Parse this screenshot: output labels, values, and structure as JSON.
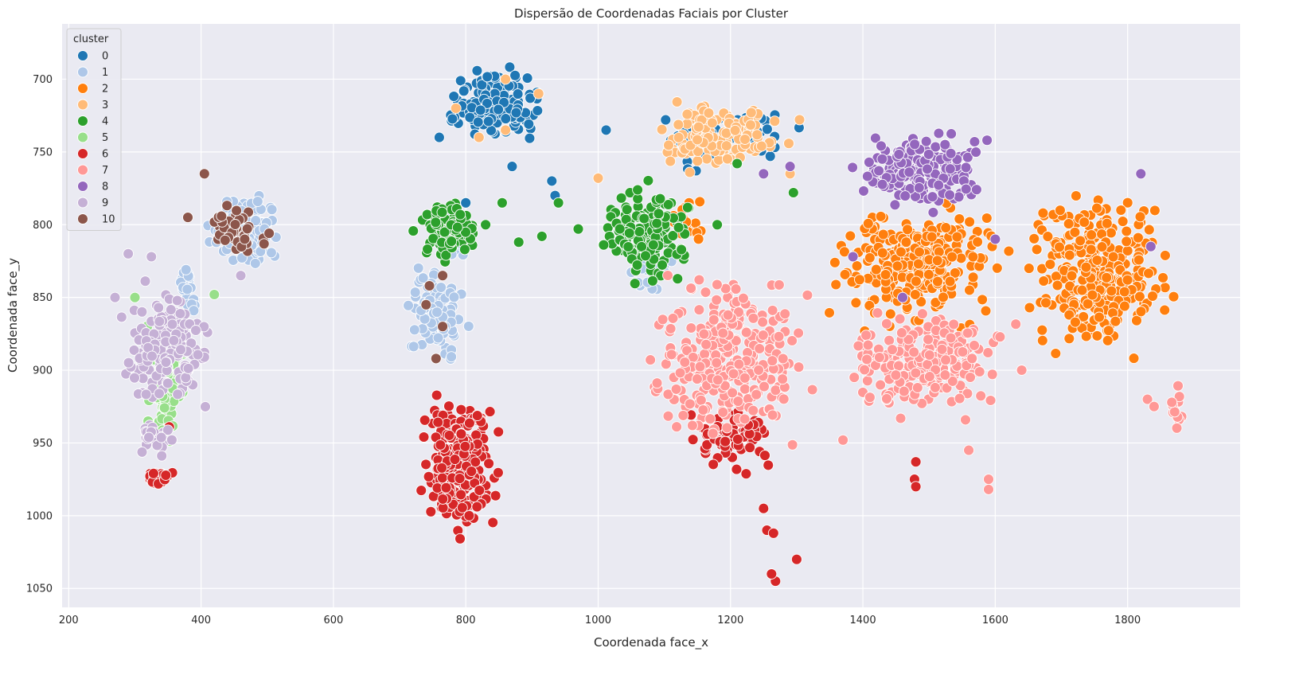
{
  "chart_data": {
    "type": "scatter",
    "title": "Dispersão de Coordenadas Faciais por Cluster",
    "xlabel": "Coordenada face_x",
    "ylabel": "Coordenada face_y",
    "xlim": [
      190,
      1970
    ],
    "ylim": [
      1063,
      662
    ],
    "y_inverted": true,
    "grid": true,
    "background": "#EAEAF2",
    "xticks": [
      200,
      400,
      600,
      800,
      1000,
      1200,
      1400,
      1600,
      1800
    ],
    "yticks": [
      700,
      750,
      800,
      850,
      900,
      950,
      1000,
      1050
    ],
    "legend": {
      "title": "cluster",
      "placement": "upper-left"
    },
    "series": [
      {
        "name": "0",
        "color": "#1f77b4",
        "regions": [
          {
            "x": [
              755,
              940
            ],
            "y": [
              690,
              745
            ],
            "n": 160
          },
          {
            "x": [
              1070,
              1320
            ],
            "y": [
              712,
              765
            ],
            "n": 60
          },
          {
            "points": [
              [
                1012,
                735
              ],
              [
                870,
                760
              ],
              [
                930,
                770
              ],
              [
                935,
                780
              ],
              [
                800,
                785
              ],
              [
                760,
                740
              ]
            ]
          }
        ]
      },
      {
        "name": "1",
        "color": "#aec7e8",
        "regions": [
          {
            "x": [
              400,
              530
            ],
            "y": [
              775,
              835
            ],
            "n": 110
          },
          {
            "x": [
              700,
              810
            ],
            "y": [
              820,
              905
            ],
            "n": 100
          },
          {
            "x": [
              740,
              820
            ],
            "y": [
              785,
              830
            ],
            "n": 30
          },
          {
            "x": [
              1020,
              1130
            ],
            "y": [
              810,
              860
            ],
            "n": 20
          },
          {
            "x": [
              360,
              400
            ],
            "y": [
              820,
              870
            ],
            "n": 20
          }
        ]
      },
      {
        "name": "2",
        "color": "#ff7f0e",
        "regions": [
          {
            "x": [
              1330,
              1640
            ],
            "y": [
              775,
              880
            ],
            "n": 280
          },
          {
            "x": [
              1620,
              1890
            ],
            "y": [
              765,
              900
            ],
            "n": 290
          },
          {
            "x": [
              1100,
              1170
            ],
            "y": [
              778,
              815
            ],
            "n": 18
          }
        ]
      },
      {
        "name": "3",
        "color": "#ffbb78",
        "regions": [
          {
            "x": [
              1050,
              1320
            ],
            "y": [
              710,
              770
            ],
            "n": 130
          },
          {
            "points": [
              [
                785,
                720
              ],
              [
                820,
                740
              ],
              [
                860,
                735
              ],
              [
                910,
                710
              ],
              [
                860,
                700
              ],
              [
                1000,
                768
              ],
              [
                1290,
                765
              ]
            ]
          }
        ]
      },
      {
        "name": "4",
        "color": "#2ca02c",
        "regions": [
          {
            "x": [
              715,
              830
            ],
            "y": [
              778,
              830
            ],
            "n": 100
          },
          {
            "x": [
              990,
              1160
            ],
            "y": [
              765,
              850
            ],
            "n": 140
          },
          {
            "points": [
              [
                830,
                800
              ],
              [
                855,
                785
              ],
              [
                880,
                812
              ],
              [
                915,
                808
              ],
              [
                970,
                803
              ],
              [
                940,
                785
              ],
              [
                1210,
                758
              ],
              [
                1295,
                778
              ],
              [
                1210,
                862
              ],
              [
                1180,
                800
              ]
            ]
          }
        ]
      },
      {
        "name": "5",
        "color": "#98df8a",
        "regions": [
          {
            "x": [
              310,
              390
            ],
            "y": [
              855,
              960
            ],
            "n": 90
          },
          {
            "points": [
              [
                320,
                935
              ],
              [
                330,
                972
              ],
              [
                420,
                848
              ],
              [
                300,
                850
              ]
            ]
          }
        ]
      },
      {
        "name": "6",
        "color": "#d62728",
        "regions": [
          {
            "x": [
              720,
              860
            ],
            "y": [
              905,
              1028
            ],
            "n": 230
          },
          {
            "x": [
              1120,
              1270
            ],
            "y": [
              918,
              975
            ],
            "n": 80
          },
          {
            "x": [
              310,
              365
            ],
            "y": [
              965,
              980
            ],
            "n": 25
          },
          {
            "points": [
              [
                1250,
                995
              ],
              [
                1255,
                1010
              ],
              [
                1265,
                1012
              ],
              [
                1268,
                1045
              ],
              [
                1262,
                1040
              ],
              [
                1300,
                1030
              ],
              [
                1480,
                963
              ],
              [
                1478,
                975
              ],
              [
                1480,
                980
              ],
              [
                352,
                939
              ]
            ]
          }
        ]
      },
      {
        "name": "7",
        "color": "#ff9896",
        "regions": [
          {
            "x": [
              1050,
              1350
            ],
            "y": [
              820,
              965
            ],
            "n": 300
          },
          {
            "x": [
              1340,
              1650
            ],
            "y": [
              850,
              940
            ],
            "n": 230
          },
          {
            "x": [
              1860,
              1890
            ],
            "y": [
              905,
              950
            ],
            "n": 12
          },
          {
            "points": [
              [
                1370,
                948
              ],
              [
                1560,
                955
              ],
              [
                1590,
                975
              ],
              [
                1590,
                982
              ],
              [
                1830,
                920
              ],
              [
                1840,
                925
              ],
              [
                1640,
                900
              ]
            ]
          }
        ]
      },
      {
        "name": "8",
        "color": "#9467bd",
        "regions": [
          {
            "x": [
              1370,
              1600
            ],
            "y": [
              730,
              795
            ],
            "n": 200
          },
          {
            "points": [
              [
                1600,
                810
              ],
              [
                1835,
                815
              ],
              [
                1820,
                765
              ],
              [
                1460,
                850
              ],
              [
                1250,
                765
              ],
              [
                1290,
                760
              ],
              [
                1385,
                822
              ]
            ]
          }
        ]
      },
      {
        "name": "9",
        "color": "#c5b0d5",
        "regions": [
          {
            "x": [
              265,
              430
            ],
            "y": [
              835,
              935
            ],
            "n": 170
          },
          {
            "x": [
              300,
              360
            ],
            "y": [
              930,
              965
            ],
            "n": 25
          },
          {
            "points": [
              [
                290,
                820
              ],
              [
                325,
                822
              ],
              [
                460,
                835
              ],
              [
                270,
                850
              ]
            ]
          }
        ]
      },
      {
        "name": "10",
        "color": "#8c564b",
        "regions": [
          {
            "x": [
              400,
              510
            ],
            "y": [
              780,
              825
            ],
            "n": 40
          },
          {
            "points": [
              [
                405,
                765
              ],
              [
                380,
                795
              ],
              [
                745,
                842
              ],
              [
                765,
                835
              ],
              [
                765,
                870
              ],
              [
                755,
                892
              ],
              [
                740,
                855
              ]
            ]
          }
        ]
      }
    ]
  }
}
